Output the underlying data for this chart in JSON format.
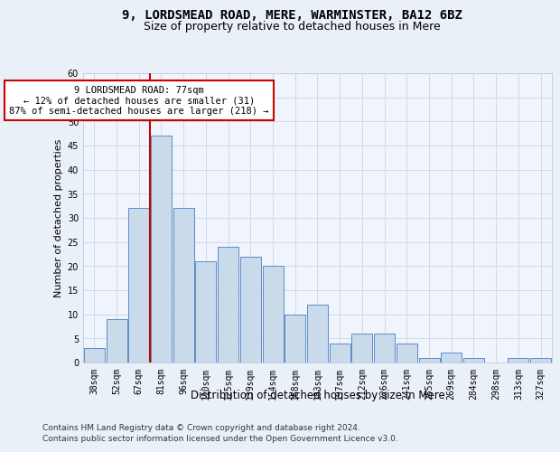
{
  "title1": "9, LORDSMEAD ROAD, MERE, WARMINSTER, BA12 6BZ",
  "title2": "Size of property relative to detached houses in Mere",
  "xlabel": "Distribution of detached houses by size in Mere",
  "ylabel": "Number of detached properties",
  "categories": [
    "38sqm",
    "52sqm",
    "67sqm",
    "81sqm",
    "96sqm",
    "110sqm",
    "125sqm",
    "139sqm",
    "154sqm",
    "168sqm",
    "183sqm",
    "197sqm",
    "212sqm",
    "226sqm",
    "241sqm",
    "255sqm",
    "269sqm",
    "284sqm",
    "298sqm",
    "313sqm",
    "327sqm"
  ],
  "values": [
    3,
    9,
    32,
    47,
    32,
    21,
    24,
    22,
    20,
    10,
    12,
    4,
    6,
    6,
    4,
    1,
    2,
    1,
    0,
    1,
    1
  ],
  "bar_color": "#c9daea",
  "bar_edge_color": "#5b8cc8",
  "red_line_color": "#cc0000",
  "red_line_x": 2.5,
  "annotation_text": "9 LORDSMEAD ROAD: 77sqm\n← 12% of detached houses are smaller (31)\n87% of semi-detached houses are larger (218) →",
  "annotation_box_color": "#ffffff",
  "annotation_box_edge_color": "#cc0000",
  "ylim": [
    0,
    60
  ],
  "yticks": [
    0,
    5,
    10,
    15,
    20,
    25,
    30,
    35,
    40,
    45,
    50,
    55,
    60
  ],
  "footer1": "Contains HM Land Registry data © Crown copyright and database right 2024.",
  "footer2": "Contains public sector information licensed under the Open Government Licence v3.0.",
  "bg_color": "#eaf0f8",
  "plot_bg_color": "#f0f4fc",
  "title1_fontsize": 10,
  "title2_fontsize": 9,
  "xlabel_fontsize": 8.5,
  "ylabel_fontsize": 8,
  "tick_fontsize": 7,
  "annotation_fontsize": 7.5,
  "footer_fontsize": 6.5
}
